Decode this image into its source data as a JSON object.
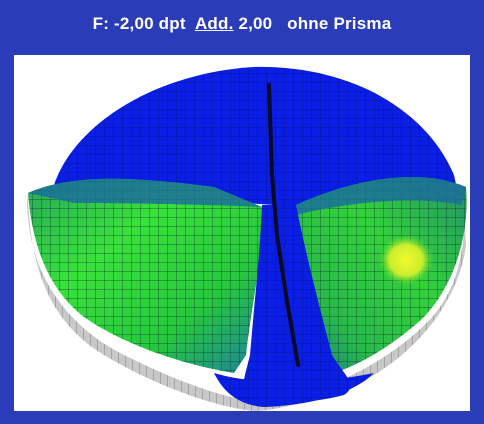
{
  "header": {
    "prefix": "F: -2,00 dpt",
    "add_word": "Add.",
    "add_value": "2,00",
    "prism": "ohne Prisma"
  },
  "colors": {
    "frame": "#2b3cb8",
    "zone_blue": "#0a1ee6",
    "zone_teal": "#1b6e9a",
    "zone_green": "#2fd52f",
    "zone_yellow": "#d8f32c",
    "base_grey": "#c8c8c8",
    "meridian": "#0a0a28"
  },
  "legend": []
}
